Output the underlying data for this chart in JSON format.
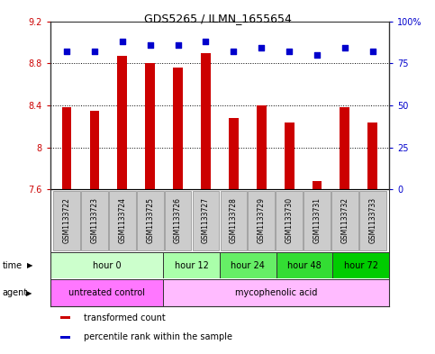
{
  "title": "GDS5265 / ILMN_1655654",
  "samples": [
    "GSM1133722",
    "GSM1133723",
    "GSM1133724",
    "GSM1133725",
    "GSM1133726",
    "GSM1133727",
    "GSM1133728",
    "GSM1133729",
    "GSM1133730",
    "GSM1133731",
    "GSM1133732",
    "GSM1133733"
  ],
  "bar_values": [
    8.38,
    8.35,
    8.87,
    8.8,
    8.76,
    8.9,
    8.28,
    8.4,
    8.24,
    7.68,
    8.38,
    8.24
  ],
  "bar_bottom": 7.6,
  "percentile_values": [
    82,
    82,
    88,
    86,
    86,
    88,
    82,
    84,
    82,
    80,
    84,
    82
  ],
  "ylim_left": [
    7.6,
    9.2
  ],
  "ylim_right": [
    0,
    100
  ],
  "yticks_left": [
    7.6,
    8.0,
    8.4,
    8.8,
    9.2
  ],
  "yticks_right": [
    0,
    25,
    50,
    75,
    100
  ],
  "ytick_labels_left": [
    "7.6",
    "8",
    "8.4",
    "8.8",
    "9.2"
  ],
  "ytick_labels_right": [
    "0",
    "25",
    "50",
    "75",
    "100%"
  ],
  "bar_color": "#cc0000",
  "dot_color": "#0000cc",
  "grid_color": "#000000",
  "sample_bg_color": "#cccccc",
  "time_groups": [
    {
      "label": "hour 0",
      "start": 0,
      "end": 4,
      "color": "#ccffcc"
    },
    {
      "label": "hour 12",
      "start": 4,
      "end": 6,
      "color": "#aaffaa"
    },
    {
      "label": "hour 24",
      "start": 6,
      "end": 8,
      "color": "#66ee66"
    },
    {
      "label": "hour 48",
      "start": 8,
      "end": 10,
      "color": "#33dd33"
    },
    {
      "label": "hour 72",
      "start": 10,
      "end": 12,
      "color": "#00cc00"
    }
  ],
  "agent_groups": [
    {
      "label": "untreated control",
      "start": 0,
      "end": 4,
      "color": "#ff77ff"
    },
    {
      "label": "mycophenolic acid",
      "start": 4,
      "end": 12,
      "color": "#ffbbff"
    }
  ],
  "legend_items": [
    {
      "label": "transformed count",
      "color": "#cc0000"
    },
    {
      "label": "percentile rank within the sample",
      "color": "#0000cc"
    }
  ],
  "time_label": "time",
  "agent_label": "agent",
  "bg_color": "#ffffff",
  "tick_color_left": "#cc0000",
  "tick_color_right": "#0000cc"
}
